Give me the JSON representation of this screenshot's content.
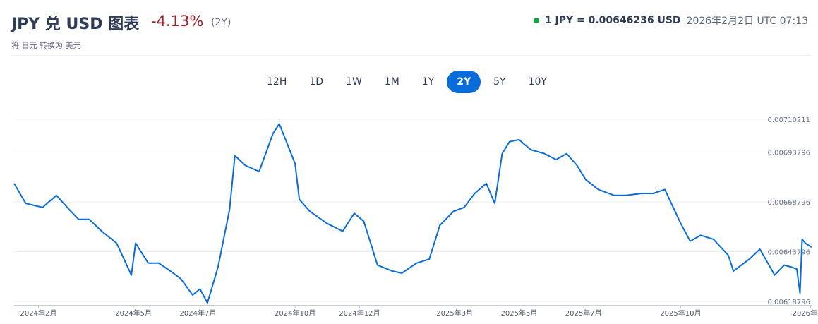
{
  "header": {
    "title": "JPY 兑 USD 图表",
    "change": "-4.13%",
    "period": "(2Y)",
    "subtitle": "将 日元 转换为 美元",
    "rate": "1 JPY = 0.00646236 USD",
    "timestamp": "2026年2月2日 UTC 07:13"
  },
  "tabs": [
    {
      "label": "12H",
      "active": false
    },
    {
      "label": "1D",
      "active": false
    },
    {
      "label": "1W",
      "active": false
    },
    {
      "label": "1M",
      "active": false
    },
    {
      "label": "1Y",
      "active": false
    },
    {
      "label": "2Y",
      "active": true
    },
    {
      "label": "5Y",
      "active": false
    },
    {
      "label": "10Y",
      "active": false
    }
  ],
  "colors": {
    "line": "#0a6cda",
    "negative": "#a1202a",
    "live_dot": "#16a34a"
  },
  "chart_data": {
    "type": "line",
    "title": "",
    "xlabel": "",
    "ylabel": "",
    "y_ticks": [
      "0.00710211",
      "0.00693796",
      "0.00668796",
      "0.00643796",
      "0.00618796"
    ],
    "ylim": [
      0.00617,
      0.00712
    ],
    "x_ticks": [
      "2024年2月",
      "2024年5月",
      "2024年7月",
      "2024年10月",
      "2024年12月",
      "2025年3月",
      "2025年5月",
      "2025年7月",
      "2025年10月",
      "2026年2月"
    ],
    "x_tick_dates": [
      "2024-02-01",
      "2024-05-01",
      "2024-07-01",
      "2024-10-01",
      "2024-12-01",
      "2025-03-01",
      "2025-05-01",
      "2025-07-01",
      "2025-10-01",
      "2026-02-01"
    ],
    "x_range": [
      "2024-01-09",
      "2026-02-02"
    ],
    "grid": true,
    "series": [
      {
        "x": [
          "2024-01-09",
          "2024-01-20",
          "2024-02-05",
          "2024-02-18",
          "2024-03-01",
          "2024-03-10",
          "2024-03-20",
          "2024-04-01",
          "2024-04-15",
          "2024-04-22",
          "2024-04-29",
          "2024-05-03",
          "2024-05-15",
          "2024-05-25",
          "2024-06-05",
          "2024-06-15",
          "2024-06-26",
          "2024-07-03",
          "2024-07-10",
          "2024-07-20",
          "2024-07-31",
          "2024-08-05",
          "2024-08-15",
          "2024-08-28",
          "2024-09-10",
          "2024-09-16",
          "2024-09-25",
          "2024-10-01",
          "2024-10-05",
          "2024-10-15",
          "2024-10-31",
          "2024-11-15",
          "2024-11-26",
          "2024-12-05",
          "2024-12-18",
          "2025-01-01",
          "2025-01-10",
          "2025-01-24",
          "2025-02-05",
          "2025-02-15",
          "2025-02-28",
          "2025-03-10",
          "2025-03-20",
          "2025-03-31",
          "2025-04-08",
          "2025-04-15",
          "2025-04-22",
          "2025-05-01",
          "2025-05-12",
          "2025-05-25",
          "2025-06-05",
          "2025-06-15",
          "2025-06-25",
          "2025-07-03",
          "2025-07-15",
          "2025-07-30",
          "2025-08-10",
          "2025-08-25",
          "2025-09-05",
          "2025-09-16",
          "2025-10-01",
          "2025-10-10",
          "2025-10-20",
          "2025-11-01",
          "2025-11-15",
          "2025-11-20",
          "2025-12-05",
          "2025-12-15",
          "2025-12-29",
          "2026-01-07",
          "2026-01-14",
          "2026-01-19",
          "2026-01-22",
          "2026-01-24",
          "2026-01-27",
          "2026-02-02"
        ],
        "y": [
          0.00678,
          0.00668,
          0.00666,
          0.00672,
          0.00665,
          0.0066,
          0.0066,
          0.00654,
          0.00648,
          0.0064,
          0.00632,
          0.00648,
          0.00638,
          0.00638,
          0.00634,
          0.0063,
          0.00622,
          0.00625,
          0.00618,
          0.00636,
          0.00665,
          0.00692,
          0.00687,
          0.00684,
          0.00703,
          0.00708,
          0.00696,
          0.00688,
          0.0067,
          0.00664,
          0.00658,
          0.00654,
          0.00663,
          0.00659,
          0.00637,
          0.00634,
          0.00633,
          0.00638,
          0.0064,
          0.00657,
          0.00664,
          0.00666,
          0.00673,
          0.00678,
          0.00668,
          0.00693,
          0.00699,
          0.007,
          0.00695,
          0.00693,
          0.0069,
          0.00693,
          0.00687,
          0.0068,
          0.00675,
          0.00672,
          0.00672,
          0.00673,
          0.00673,
          0.00675,
          0.00658,
          0.00649,
          0.00652,
          0.0065,
          0.00642,
          0.00634,
          0.0064,
          0.00645,
          0.00632,
          0.00637,
          0.00636,
          0.00635,
          0.00623,
          0.0065,
          0.00648,
          0.00646
        ]
      }
    ]
  }
}
